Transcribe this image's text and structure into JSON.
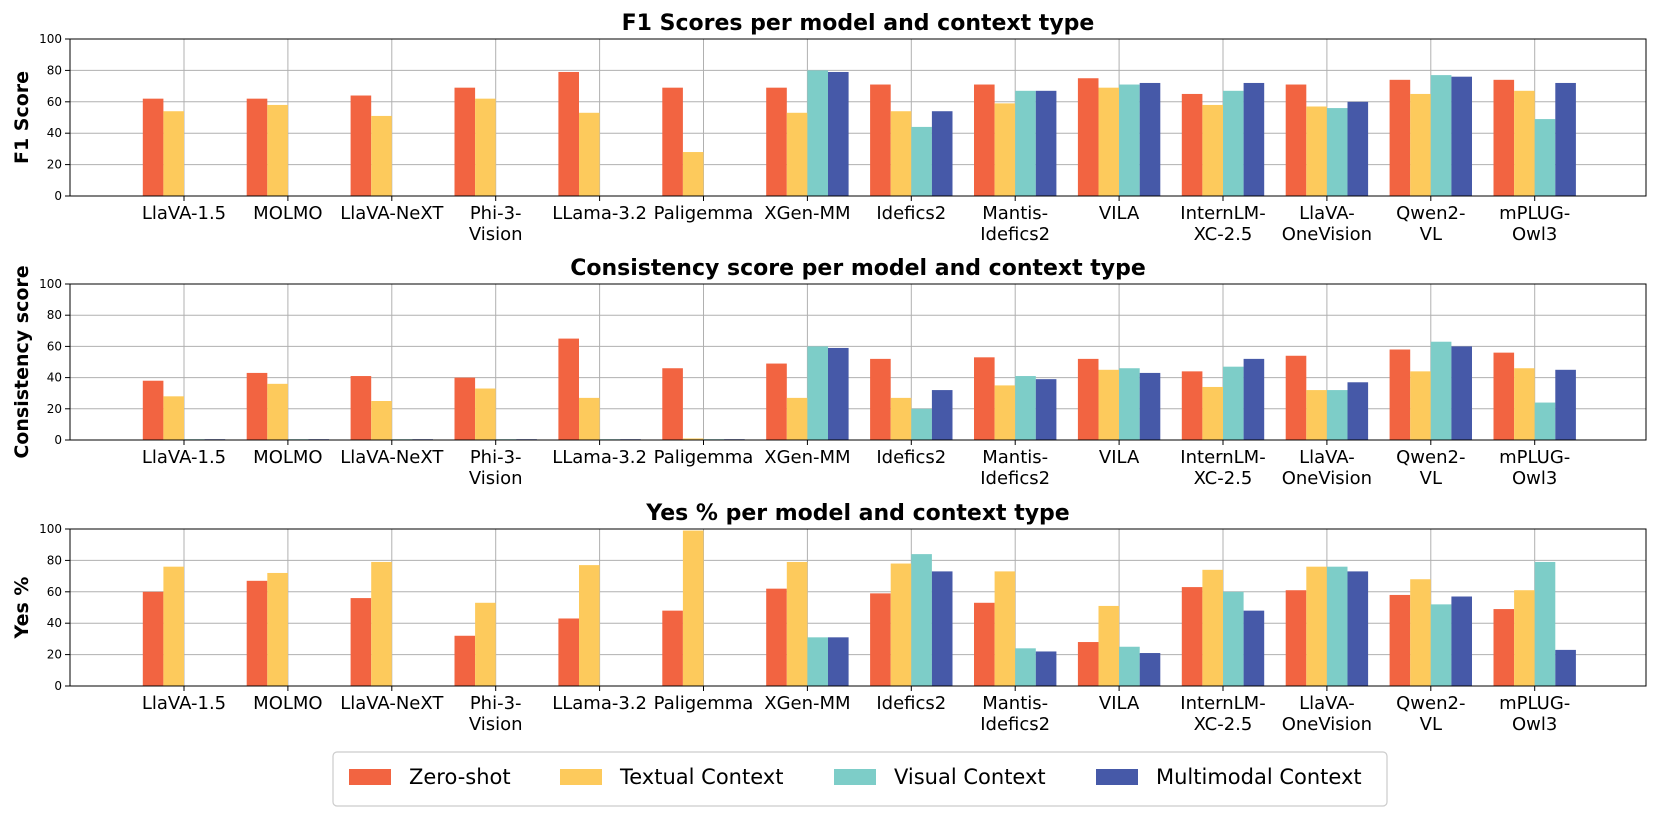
{
  "chart_data": [
    {
      "type": "bar",
      "title": "F1 Scores per model and context type",
      "ylabel": "F1 Score",
      "xlabel": "",
      "ylim": [
        0,
        100
      ],
      "yticks": [
        "0",
        "20",
        "40",
        "60",
        "80",
        "100"
      ],
      "grid": true,
      "categories": [
        "LlaVA-1.5",
        "MOLMO",
        "LlaVA-NeXT",
        "Phi-3-\nVision",
        "LLama-3.2",
        "Paligemma",
        "XGen-MM",
        "Idefics2",
        "Mantis-\nIdefics2",
        "VILA",
        "InternLM-\nXC-2.5",
        "LlaVA-\nOneVision",
        "Qwen2-\nVL",
        "mPLUG-\nOwl3"
      ],
      "series": [
        {
          "name": "Zero-shot",
          "values": [
            62,
            62,
            64,
            69,
            79,
            69,
            69,
            71,
            71,
            75,
            65,
            71,
            74,
            74
          ]
        },
        {
          "name": "Textual Context",
          "values": [
            54,
            58,
            51,
            62,
            53,
            28,
            53,
            54,
            59,
            69,
            58,
            57,
            65,
            67
          ]
        },
        {
          "name": "Visual Context",
          "values": [
            null,
            null,
            null,
            null,
            null,
            null,
            80,
            44,
            67,
            71,
            67,
            56,
            77,
            49
          ]
        },
        {
          "name": "Multimodal Context",
          "values": [
            null,
            null,
            null,
            null,
            null,
            null,
            79,
            54,
            67,
            72,
            72,
            60,
            76,
            72
          ]
        }
      ]
    },
    {
      "type": "bar",
      "title": "Consistency score per model and context type",
      "ylabel": "Consistency score",
      "xlabel": "",
      "ylim": [
        0,
        100
      ],
      "yticks": [
        "0",
        "20",
        "40",
        "60",
        "80",
        "100"
      ],
      "grid": true,
      "categories": [
        "LlaVA-1.5",
        "MOLMO",
        "LlaVA-NeXT",
        "Phi-3-\nVision",
        "LLama-3.2",
        "Paligemma",
        "XGen-MM",
        "Idefics2",
        "Mantis-\nIdefics2",
        "VILA",
        "InternLM-\nXC-2.5",
        "LlaVA-\nOneVision",
        "Qwen2-\nVL",
        "mPLUG-\nOwl3"
      ],
      "series": [
        {
          "name": "Zero-shot",
          "values": [
            38,
            43,
            41,
            40,
            65,
            46,
            49,
            52,
            53,
            52,
            44,
            54,
            58,
            56
          ]
        },
        {
          "name": "Textual Context",
          "values": [
            28,
            36,
            25,
            33,
            27,
            1,
            27,
            27,
            35,
            45,
            34,
            32,
            44,
            46
          ]
        },
        {
          "name": "Visual Context",
          "values": [
            0.5,
            0.5,
            0.5,
            0.5,
            0.5,
            0.5,
            60,
            20,
            41,
            46,
            47,
            32,
            63,
            24
          ]
        },
        {
          "name": "Multimodal Context",
          "values": [
            0.5,
            0.5,
            0.5,
            0.5,
            0.5,
            0.5,
            59,
            32,
            39,
            43,
            52,
            37,
            60,
            45
          ]
        }
      ]
    },
    {
      "type": "bar",
      "title": "Yes % per model and context type",
      "ylabel": "Yes %",
      "xlabel": "",
      "ylim": [
        0,
        100
      ],
      "yticks": [
        "0",
        "20",
        "40",
        "60",
        "80",
        "100"
      ],
      "grid": true,
      "categories": [
        "LlaVA-1.5",
        "MOLMO",
        "LlaVA-NeXT",
        "Phi-3-\nVision",
        "LLama-3.2",
        "Paligemma",
        "XGen-MM",
        "Idefics2",
        "Mantis-\nIdefics2",
        "VILA",
        "InternLM-\nXC-2.5",
        "LlaVA-\nOneVision",
        "Qwen2-\nVL",
        "mPLUG-\nOwl3"
      ],
      "series": [
        {
          "name": "Zero-shot",
          "values": [
            60,
            67,
            56,
            32,
            43,
            48,
            62,
            59,
            53,
            28,
            63,
            61,
            58,
            49
          ]
        },
        {
          "name": "Textual Context",
          "values": [
            76,
            72,
            79,
            53,
            77,
            99,
            79,
            78,
            73,
            51,
            74,
            76,
            68,
            61
          ]
        },
        {
          "name": "Visual Context",
          "values": [
            null,
            null,
            null,
            null,
            null,
            null,
            31,
            84,
            24,
            25,
            60,
            76,
            52,
            79
          ]
        },
        {
          "name": "Multimodal Context",
          "values": [
            null,
            null,
            null,
            null,
            null,
            null,
            31,
            73,
            22,
            21,
            48,
            73,
            57,
            23
          ]
        }
      ]
    }
  ],
  "legend": {
    "position": "bottom-center",
    "items": [
      {
        "label": "Zero-shot",
        "color": "#F26441"
      },
      {
        "label": "Textual Context",
        "color": "#FDCA5C"
      },
      {
        "label": "Visual Context",
        "color": "#7DCDC8"
      },
      {
        "label": "Multimodal Context",
        "color": "#4659A8"
      }
    ]
  }
}
